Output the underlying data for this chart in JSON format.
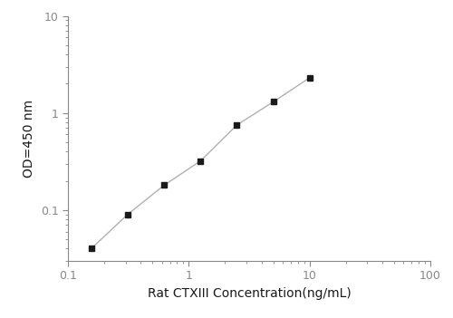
{
  "x_values": [
    0.156,
    0.312,
    0.625,
    1.25,
    2.5,
    5.0,
    10.0
  ],
  "y_values": [
    0.04,
    0.09,
    0.18,
    0.32,
    0.75,
    1.3,
    2.3
  ],
  "xlabel": "Rat CTXIII Concentration(ng/mL)",
  "ylabel": "OD=450 nm",
  "xlim": [
    0.1,
    100
  ],
  "ylim": [
    0.03,
    10
  ],
  "xticks": [
    0.1,
    1,
    10,
    100
  ],
  "yticks": [
    0.1,
    1,
    10
  ],
  "line_color": "#b0b0b0",
  "marker_color": "#1a1a1a",
  "marker_style": "s",
  "marker_size": 5,
  "background_color": "#ffffff",
  "fig_width": 5.0,
  "fig_height": 3.51,
  "dpi": 100,
  "spine_color": "#888888",
  "tick_color": "#888888",
  "label_color": "#1a1a1a",
  "label_fontsize": 10,
  "tick_fontsize": 9
}
